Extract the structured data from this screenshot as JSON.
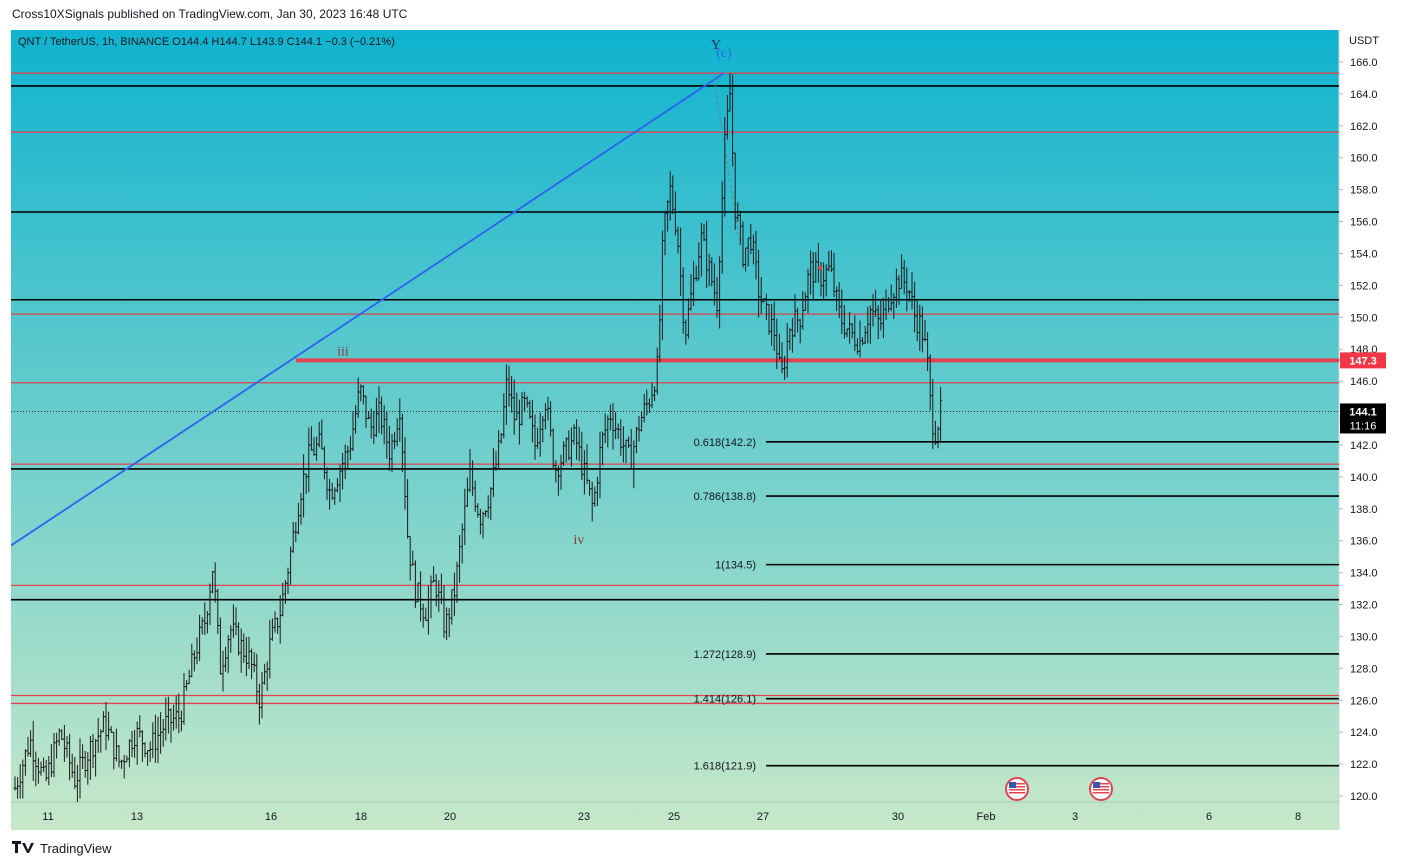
{
  "header": {
    "publisher": "Cross10XSignals published on TradingView.com, Jan 30, 2023 16:48 UTC"
  },
  "footer": {
    "brand": "TradingView"
  },
  "colors": {
    "gradient_top": "#0fb3cf",
    "gradient_bottom": "#c7e8c9",
    "candle": "#1a1a1a",
    "black_level": "#000000",
    "red_level": "#e0434f",
    "blue_trend": "#2b64f0",
    "price_badge_bg": "#000000",
    "level_badge_bg": "#f23645"
  },
  "chart_data": {
    "type": "candlestick",
    "symbol_line": "QNT / TetherUS, 1h, BINANCE  O144.4  H144.7  L143.9  C144.1  −0.3 (−0.21%)",
    "y_axis_title": "USDT",
    "ylim": [
      119.5,
      167.5
    ],
    "y_ticks": [
      "166.0",
      "164.0",
      "162.0",
      "160.0",
      "158.0",
      "156.0",
      "154.0",
      "152.0",
      "150.0",
      "148.0",
      "146.0",
      "142.0",
      "140.0",
      "138.0",
      "136.0",
      "134.0",
      "132.0",
      "130.0",
      "128.0",
      "126.0",
      "124.0",
      "122.0",
      "120.0"
    ],
    "x_ticks": [
      "11",
      "13",
      "16",
      "18",
      "20",
      "23",
      "25",
      "27",
      "30",
      "Feb",
      "3",
      "6",
      "8"
    ],
    "current_price": {
      "value": 144.1,
      "label": "144.1",
      "countdown": "11:16"
    },
    "level_badge": {
      "value": 147.3,
      "label": "147.3"
    },
    "black_levels": [
      164.5,
      156.6,
      151.1,
      140.5,
      132.3
    ],
    "red_levels": [
      165.3,
      161.6,
      150.2,
      145.9,
      140.8,
      133.2,
      126.3,
      125.8
    ],
    "fib_levels": [
      {
        "label": "0.618(142.2)",
        "value": 142.2
      },
      {
        "label": "0.786(138.8)",
        "value": 138.8
      },
      {
        "label": "1(134.5)",
        "value": 134.5
      },
      {
        "label": "1.272(128.9)",
        "value": 128.9
      },
      {
        "label": "1.414(126.1)",
        "value": 126.1
      },
      {
        "label": "1.618(121.9)",
        "value": 121.9
      }
    ],
    "wave_labels": [
      {
        "text": "iii",
        "date": "Jan 17",
        "price": 147.6,
        "color": "#8a3a3a"
      },
      {
        "text": "iv",
        "date": "Jan 22",
        "price": 135.8,
        "color": "#8a3a3a"
      },
      {
        "text": "Y",
        "date": "Jan 25",
        "price": 166.8,
        "color": "#1e2a5a"
      },
      {
        "text": "(c)",
        "date": "Jan 26",
        "price": 166.3,
        "color": "#2b64f0"
      }
    ],
    "trendline": {
      "from": {
        "date": "Jan 9",
        "price": 135.7
      },
      "to": {
        "date": "Jan 26",
        "price": 165.3
      }
    },
    "price_path": [
      {
        "t": 0,
        "p": 120.5
      },
      {
        "t": 15,
        "p": 123.5
      },
      {
        "t": 30,
        "p": 120.8
      },
      {
        "t": 45,
        "p": 124.0
      },
      {
        "t": 60,
        "p": 121.0
      },
      {
        "t": 75,
        "p": 123.0
      },
      {
        "t": 90,
        "p": 124.5
      },
      {
        "t": 105,
        "p": 122.0
      },
      {
        "t": 120,
        "p": 124.0
      },
      {
        "t": 135,
        "p": 123.0
      },
      {
        "t": 150,
        "p": 124.5
      },
      {
        "t": 165,
        "p": 125.0
      },
      {
        "t": 180,
        "p": 129.0
      },
      {
        "t": 190,
        "p": 131.0
      },
      {
        "t": 198,
        "p": 134.5
      },
      {
        "t": 205,
        "p": 128.0
      },
      {
        "t": 215,
        "p": 130.5
      },
      {
        "t": 225,
        "p": 129.5
      },
      {
        "t": 235,
        "p": 128.5
      },
      {
        "t": 245,
        "p": 126.0
      },
      {
        "t": 255,
        "p": 129.5
      },
      {
        "t": 265,
        "p": 131.5
      },
      {
        "t": 275,
        "p": 135.0
      },
      {
        "t": 285,
        "p": 139.0
      },
      {
        "t": 295,
        "p": 141.5
      },
      {
        "t": 305,
        "p": 142.0
      },
      {
        "t": 315,
        "p": 139.0
      },
      {
        "t": 325,
        "p": 140.5
      },
      {
        "t": 335,
        "p": 142.0
      },
      {
        "t": 345,
        "p": 145.5
      },
      {
        "t": 355,
        "p": 143.0
      },
      {
        "t": 365,
        "p": 144.0
      },
      {
        "t": 375,
        "p": 141.5
      },
      {
        "t": 385,
        "p": 144.5
      },
      {
        "t": 393,
        "p": 136.0
      },
      {
        "t": 400,
        "p": 133.0
      },
      {
        "t": 410,
        "p": 131.5
      },
      {
        "t": 420,
        "p": 133.5
      },
      {
        "t": 430,
        "p": 130.5
      },
      {
        "t": 440,
        "p": 133.0
      },
      {
        "t": 448,
        "p": 137.0
      },
      {
        "t": 455,
        "p": 140.0
      },
      {
        "t": 465,
        "p": 137.5
      },
      {
        "t": 475,
        "p": 139.0
      },
      {
        "t": 485,
        "p": 142.0
      },
      {
        "t": 492,
        "p": 146.0
      },
      {
        "t": 500,
        "p": 143.5
      },
      {
        "t": 510,
        "p": 144.5
      },
      {
        "t": 520,
        "p": 142.0
      },
      {
        "t": 530,
        "p": 145.0
      },
      {
        "t": 540,
        "p": 140.5
      },
      {
        "t": 550,
        "p": 141.5
      },
      {
        "t": 560,
        "p": 142.5
      },
      {
        "t": 570,
        "p": 140.0
      },
      {
        "t": 578,
        "p": 138.0
      },
      {
        "t": 586,
        "p": 142.0
      },
      {
        "t": 595,
        "p": 144.0
      },
      {
        "t": 605,
        "p": 142.5
      },
      {
        "t": 615,
        "p": 141.0
      },
      {
        "t": 625,
        "p": 143.5
      },
      {
        "t": 635,
        "p": 145.0
      },
      {
        "t": 643,
        "p": 147.0
      },
      {
        "t": 648,
        "p": 155.0
      },
      {
        "t": 655,
        "p": 158.0
      },
      {
        "t": 662,
        "p": 155.5
      },
      {
        "t": 670,
        "p": 149.0
      },
      {
        "t": 678,
        "p": 152.0
      },
      {
        "t": 686,
        "p": 155.0
      },
      {
        "t": 694,
        "p": 153.0
      },
      {
        "t": 702,
        "p": 151.0
      },
      {
        "t": 710,
        "p": 161.0
      },
      {
        "t": 715,
        "p": 164.0
      },
      {
        "t": 720,
        "p": 157.0
      },
      {
        "t": 728,
        "p": 154.0
      },
      {
        "t": 736,
        "p": 155.0
      },
      {
        "t": 744,
        "p": 151.5
      },
      {
        "t": 752,
        "p": 150.0
      },
      {
        "t": 760,
        "p": 149.0
      },
      {
        "t": 766,
        "p": 146.0
      },
      {
        "t": 775,
        "p": 149.5
      },
      {
        "t": 785,
        "p": 150.0
      },
      {
        "t": 795,
        "p": 153.0
      },
      {
        "t": 805,
        "p": 152.5
      },
      {
        "t": 815,
        "p": 153.0
      },
      {
        "t": 825,
        "p": 150.0
      },
      {
        "t": 835,
        "p": 149.0
      },
      {
        "t": 845,
        "p": 148.5
      },
      {
        "t": 855,
        "p": 150.5
      },
      {
        "t": 865,
        "p": 149.5
      },
      {
        "t": 875,
        "p": 151.5
      },
      {
        "t": 885,
        "p": 152.5
      },
      {
        "t": 893,
        "p": 152.0
      },
      {
        "t": 900,
        "p": 150.0
      },
      {
        "t": 906,
        "p": 149.5
      },
      {
        "t": 912,
        "p": 147.5
      },
      {
        "t": 916,
        "p": 144.0
      },
      {
        "t": 920,
        "p": 142.8
      },
      {
        "t": 926,
        "p": 144.1
      }
    ]
  }
}
